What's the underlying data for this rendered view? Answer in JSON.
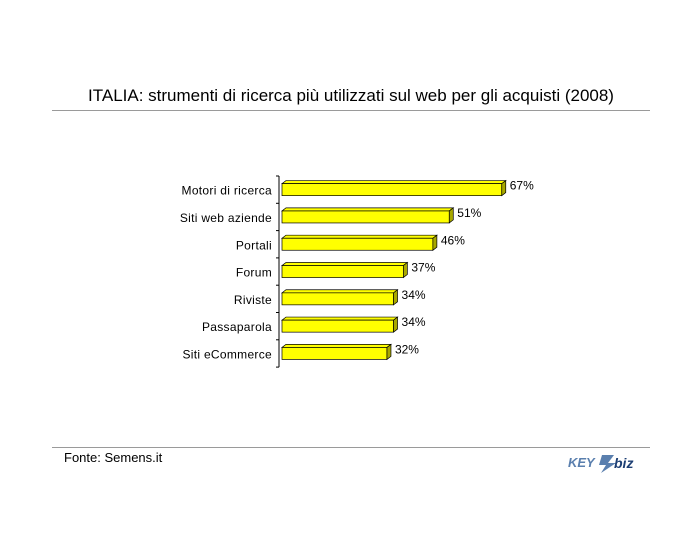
{
  "title": "ITALIA: strumenti di ricerca più utilizzati sul web per gli acquisti (2008)",
  "source": "Fonte: Semens.it",
  "logo": {
    "text_left": "KEY",
    "text_right": "biz",
    "colors": {
      "blue": "#5a7fae",
      "dark": "#1d3f74"
    }
  },
  "colors": {
    "bar_fill": "#ffff00",
    "bar_side": "#a8a800",
    "bar_edge": "#000000"
  },
  "chart_data": {
    "type": "bar",
    "orientation": "horizontal",
    "categories": [
      "Motori di ricerca",
      "Siti web aziende",
      "Portali",
      "Forum",
      "Riviste",
      "Passaparola",
      "Siti eCommerce"
    ],
    "values": [
      67,
      51,
      46,
      37,
      34,
      34,
      32
    ],
    "value_labels": [
      "67%",
      "51%",
      "46%",
      "37%",
      "34%",
      "34%",
      "32%"
    ],
    "unit": "%",
    "xlim": [
      0,
      100
    ],
    "grid": false,
    "legend": "none"
  }
}
